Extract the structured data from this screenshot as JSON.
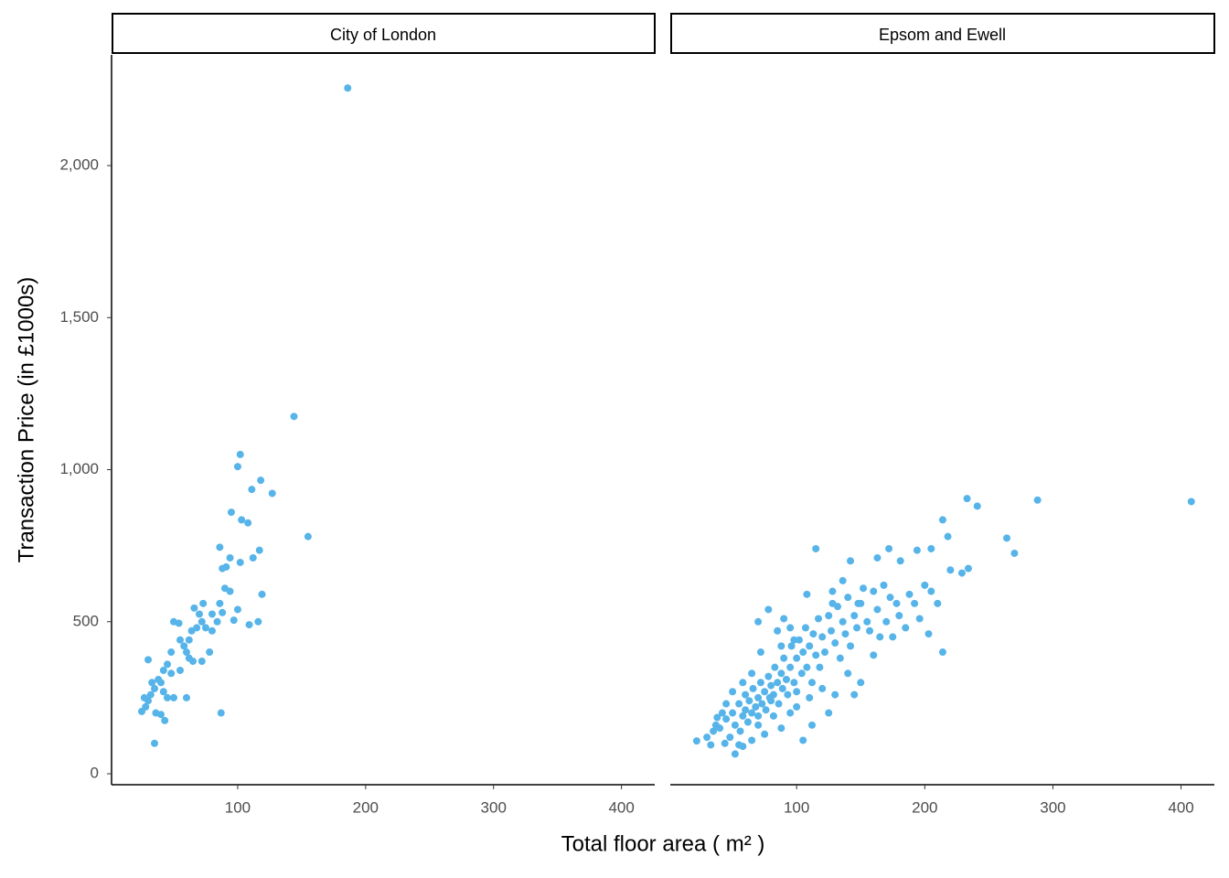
{
  "chart_data": [
    {
      "type": "scatter",
      "title": "City of London",
      "xlabel": "Total floor area ( m² )",
      "ylabel": "Transaction Price (in £1000s)",
      "color": "#56B4E9",
      "x": [
        186,
        144,
        102,
        100,
        118,
        127,
        111,
        155,
        95,
        103,
        108,
        86,
        117,
        112,
        102,
        94,
        91,
        88,
        119,
        90,
        94,
        100,
        86,
        88,
        80,
        84,
        97,
        109,
        116,
        87,
        73,
        66,
        70,
        72,
        75,
        80,
        68,
        64,
        62,
        58,
        60,
        62,
        65,
        72,
        78,
        55,
        50,
        54,
        48,
        45,
        48,
        42,
        40,
        38,
        35,
        32,
        30,
        28,
        25,
        27,
        30,
        33,
        36,
        40,
        43,
        45,
        50,
        55,
        60,
        35,
        42
      ],
      "values": [
        2255,
        1175,
        1050,
        1010,
        965,
        922,
        935,
        780,
        860,
        835,
        825,
        745,
        735,
        710,
        695,
        710,
        680,
        675,
        590,
        610,
        600,
        540,
        560,
        530,
        525,
        500,
        505,
        490,
        500,
        200,
        560,
        545,
        525,
        500,
        480,
        470,
        480,
        470,
        440,
        420,
        400,
        380,
        370,
        370,
        400,
        440,
        500,
        495,
        400,
        360,
        330,
        340,
        300,
        310,
        280,
        260,
        240,
        220,
        205,
        250,
        375,
        300,
        200,
        195,
        175,
        250,
        250,
        340,
        250,
        100,
        270
      ],
      "xlim": [
        1.4,
        426
      ],
      "ylim": [
        -36,
        2364
      ],
      "xticks": [
        100,
        200,
        300,
        400
      ],
      "yticks": [
        0,
        500,
        {
          "value": 1000,
          "label": "1,000"
        },
        {
          "value": 1500,
          "label": "1,500"
        },
        {
          "value": 2000,
          "label": "2,000"
        }
      ]
    },
    {
      "type": "scatter",
      "title": "Epsom and Ewell",
      "color": "#56B4E9",
      "x": [
        408,
        288,
        264,
        270,
        233,
        241,
        214,
        218,
        229,
        234,
        214,
        220,
        205,
        194,
        181,
        172,
        163,
        148,
        142,
        136,
        128,
        115,
        22,
        33,
        37,
        52,
        80,
        40,
        45,
        48,
        50,
        52,
        55,
        56,
        58,
        60,
        60,
        62,
        63,
        65,
        66,
        68,
        70,
        70,
        72,
        73,
        75,
        76,
        78,
        79,
        80,
        82,
        83,
        85,
        86,
        88,
        89,
        90,
        92,
        93,
        95,
        96,
        98,
        100,
        100,
        102,
        104,
        105,
        107,
        108,
        110,
        112,
        113,
        115,
        117,
        118,
        120,
        122,
        125,
        127,
        128,
        130,
        132,
        134,
        136,
        138,
        140,
        142,
        145,
        147,
        150,
        152,
        155,
        157,
        160,
        163,
        165,
        168,
        170,
        173,
        175,
        178,
        180,
        185,
        188,
        192,
        196,
        200,
        205,
        210,
        203,
        95,
        88,
        75,
        65,
        58,
        70,
        82,
        100,
        110,
        120,
        130,
        125,
        105,
        90,
        85,
        95,
        70,
        78,
        88,
        65,
        58,
        50,
        45,
        42,
        38,
        35,
        30,
        44,
        55,
        72,
        108,
        140,
        150,
        160,
        145,
        112,
        98
      ],
      "values": [
        895,
        900,
        775,
        725,
        905,
        880,
        835,
        780,
        660,
        675,
        400,
        670,
        740,
        735,
        700,
        740,
        710,
        560,
        700,
        635,
        560,
        740,
        108,
        95,
        160,
        65,
        240,
        150,
        180,
        120,
        200,
        160,
        230,
        140,
        190,
        210,
        260,
        170,
        240,
        200,
        280,
        220,
        250,
        190,
        300,
        230,
        270,
        210,
        320,
        250,
        290,
        260,
        350,
        300,
        230,
        330,
        280,
        380,
        310,
        260,
        350,
        420,
        300,
        380,
        270,
        440,
        330,
        400,
        480,
        350,
        420,
        300,
        460,
        390,
        510,
        350,
        450,
        400,
        520,
        470,
        600,
        430,
        550,
        380,
        500,
        460,
        580,
        420,
        520,
        480,
        560,
        610,
        500,
        470,
        600,
        540,
        450,
        620,
        500,
        580,
        450,
        560,
        520,
        480,
        590,
        560,
        510,
        620,
        600,
        560,
        460,
        200,
        150,
        130,
        110,
        90,
        160,
        190,
        220,
        250,
        280,
        260,
        200,
        110,
        510,
        470,
        480,
        500,
        540,
        420,
        330,
        300,
        270,
        230,
        200,
        185,
        140,
        120,
        100,
        95,
        400,
        590,
        330,
        300,
        390,
        260,
        160,
        440
      ],
      "xlim": [
        1.4,
        426
      ],
      "ylim": [
        -36,
        2364
      ],
      "xticks": [
        100,
        200,
        300,
        400
      ]
    }
  ]
}
